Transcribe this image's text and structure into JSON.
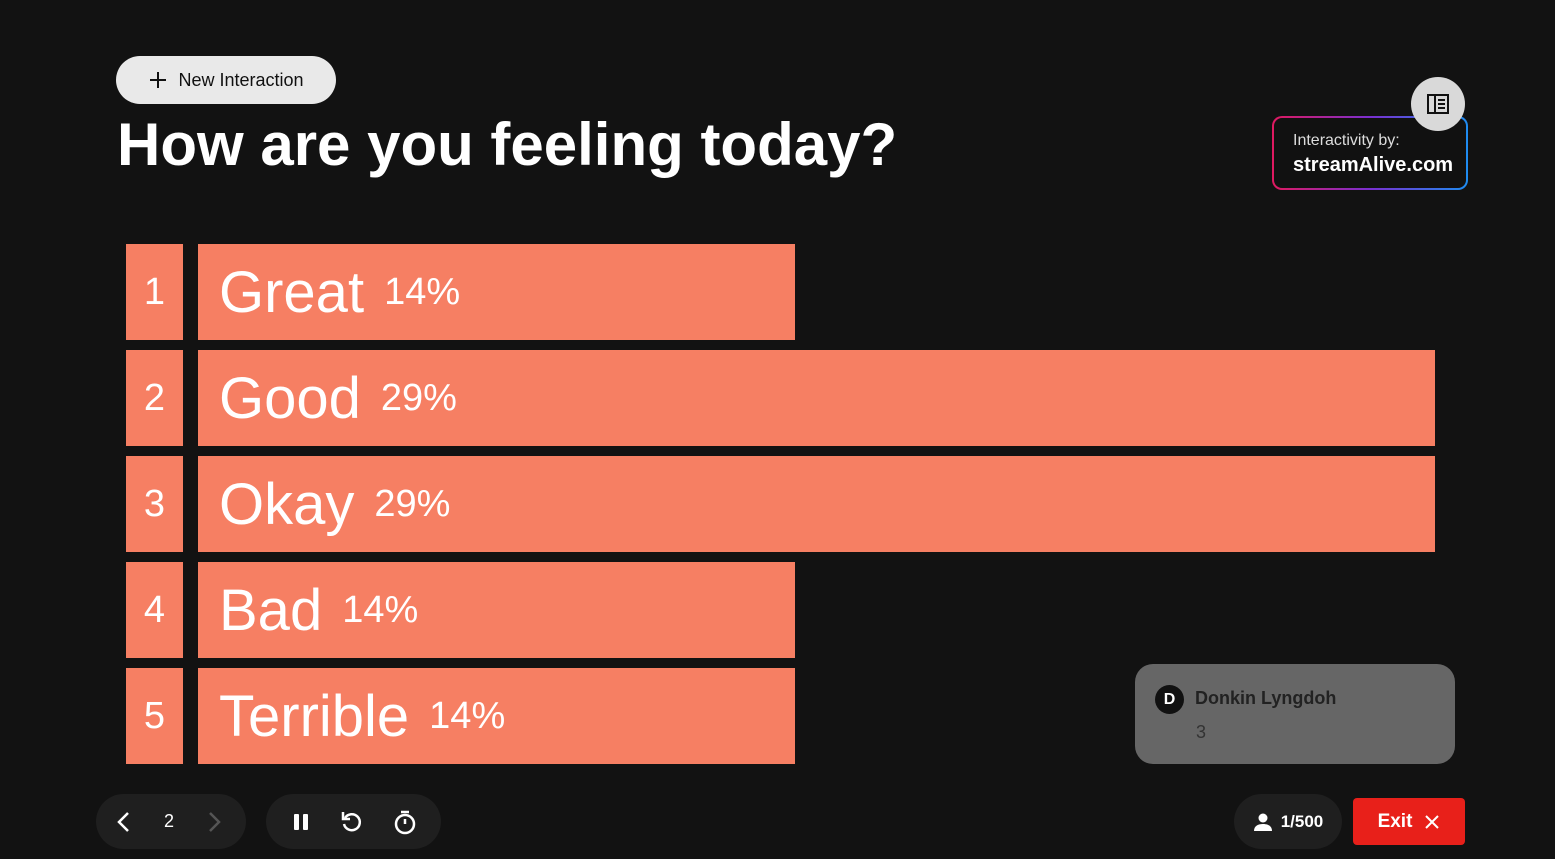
{
  "toolbar": {
    "new_interaction": "New Interaction"
  },
  "question": "How are you feeling today?",
  "branding": {
    "caption": "Interactivity by:",
    "site": "streamAlive.com"
  },
  "poll": {
    "options": [
      {
        "number": "1",
        "label": "Great",
        "value": 14,
        "value_label": "14%"
      },
      {
        "number": "2",
        "label": "Good",
        "value": 29,
        "value_label": "29%"
      },
      {
        "number": "3",
        "label": "Okay",
        "value": 29,
        "value_label": "29%"
      },
      {
        "number": "4",
        "label": "Bad",
        "value": 14,
        "value_label": "14%"
      },
      {
        "number": "5",
        "label": "Terrible",
        "value": 14,
        "value_label": "14%"
      }
    ]
  },
  "comment": {
    "initial": "D",
    "author": "Donkin Lyngdoh",
    "text": "3"
  },
  "navigation": {
    "page": "2"
  },
  "participants": "1/500",
  "exit": "Exit"
}
